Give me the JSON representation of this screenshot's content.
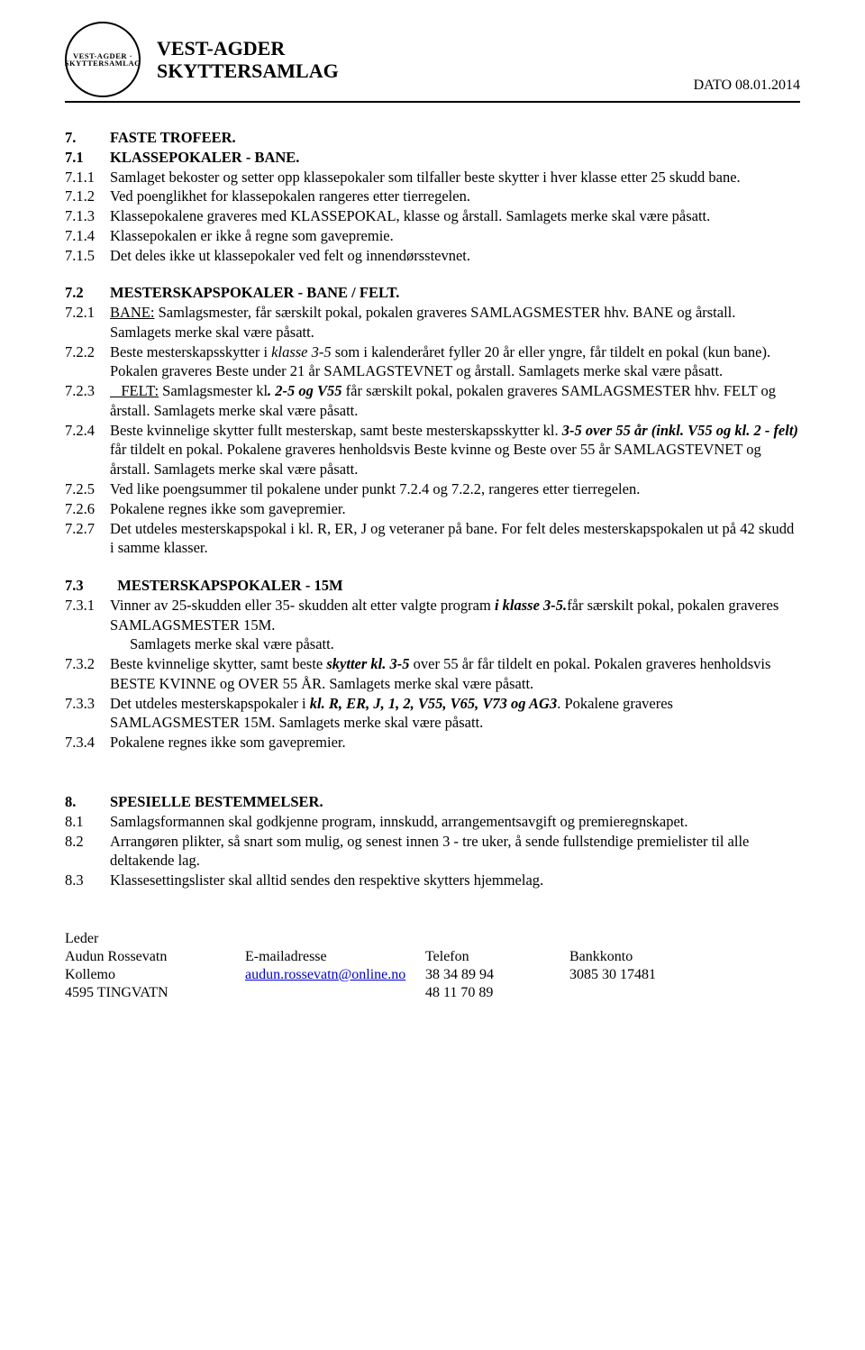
{
  "header": {
    "logo_text": "VEST-AGDER · SKYTTERSAMLAG",
    "org_line1": "VEST-AGDER",
    "org_line2": "SKYTTERSAMLAG",
    "date_label": "DATO 08.01.2014"
  },
  "s7": {
    "num": "7.",
    "title": "FASTE TROFEER."
  },
  "s71": {
    "num": "7.1",
    "title": "KLASSEPOKALER - BANE.",
    "i1_num": "7.1.1",
    "i1_txt": "Samlaget bekoster og setter opp klassepokaler som tilfaller beste skytter i hver klasse etter 25 skudd bane.",
    "i2_num": "7.1.2",
    "i2_txt": "Ved poenglikhet for klassepokalen rangeres etter tierregelen.",
    "i3_num": "7.1.3",
    "i3_txt": "Klassepokalene graveres med KLASSEPOKAL, klasse og årstall. Samlagets merke skal være påsatt.",
    "i4_num": "7.1.4",
    "i4_txt": "Klassepokalen er ikke å regne som gavepremie.",
    "i5_num": "7.1.5",
    "i5_txt": "Det deles ikke ut klassepokaler ved felt og innendørsstevnet."
  },
  "s72": {
    "num": "7.2",
    "title": "MESTERSKAPSPOKALER - BANE / FELT.",
    "i1_num": "7.2.1",
    "i1_a": "BANE:",
    "i1_b": " Samlagsmester, får særskilt pokal, pokalen graveres SAMLAGSMESTER hhv. BANE og årstall.   Samlagets merke skal være påsatt.",
    "i2_num": "7.2.2",
    "i2_a": "Beste mesterskapsskytter i ",
    "i2_b": "klasse 3-5",
    "i2_c": " som i kalenderåret fyller 20 år eller yngre, får tildelt en pokal (kun      bane). Pokalen graveres Beste under 21 år SAMLAGSTEVNET og årstall. Samlagets merke skal være påsatt.",
    "i3_num": "7.2.3",
    "i3_a": "   FELT:",
    "i3_b": " Samlagsmester kl",
    "i3_c": ". 2-5 og V55",
    "i3_d": " får særskilt pokal, pokalen graveres SAMLAGSMESTER hhv. FELT og årstall.  Samlagets merke skal være påsatt.",
    "i4_num": "7.2.4",
    "i4_a": "Beste kvinnelige skytter fullt mesterskap, samt beste mesterskapsskytter kl. ",
    "i4_b": "3-5 over 55 år (inkl. V55 og kl. 2 - felt)",
    "i4_c": " får tildelt en pokal.  Pokalene graveres henholdsvis Beste kvinne og Beste over 55 år SAMLAGSTEVNET og årstall. Samlagets merke skal være påsatt.",
    "i5_num": "7.2.5",
    "i5_txt": "Ved like poengsummer til pokalene under punkt 7.2.4 og 7.2.2, rangeres etter tierregelen.",
    "i6_num": "7.2.6",
    "i6_txt": "Pokalene regnes ikke som gavepremier.",
    "i7_num": "7.2.7",
    "i7_txt": "Det utdeles mesterskapspokal i kl. R, ER, J og veteraner på bane. For felt deles mesterskapspokalen ut på 42 skudd i samme klasser."
  },
  "s73": {
    "num": "7.3",
    "title": "  MESTERSKAPSPOKALER - 15M",
    "i1_num": "7.3.1",
    "i1_a": "Vinner av 25-skudden eller 35- skudden alt etter valgte program  ",
    "i1_b": "i klasse 3-5.",
    "i1_c": "får særskilt pokal, pokalen graveres SAMLAGSMESTER 15M.",
    "i1_d": "Samlagets merke skal være påsatt.",
    "i2_num": "7.3.2",
    "i2_a": "Beste kvinnelige skytter, samt beste ",
    "i2_b": "skytter kl. 3-5",
    "i2_c": " over 55 år får tildelt en pokal. Pokalen graveres              henholdsvis BESTE KVINNE og  OVER 55 ÅR. Samlagets merke skal være påsatt.",
    "i3_num": "7.3.3",
    "i3_a": "Det utdeles mesterskapspokaler  i ",
    "i3_b": "kl. R, ER, J, 1, 2, V55, V65, V73 og AG3",
    "i3_c": ". Pokalene graveres SAMLAGSMESTER 15M. Samlagets merke skal være påsatt.",
    "i4_num": "7.3.4",
    "i4_txt": "Pokalene regnes ikke som gavepremier."
  },
  "s8": {
    "num": "8.",
    "title": "SPESIELLE BESTEMMELSER.",
    "i1_num": "8.1",
    "i1_txt": "Samlagsformannen skal godkjenne program, innskudd, arrangementsavgift og premieregnskapet.",
    "i2_num": "8.2",
    "i2_txt": "Arrangøren plikter, så snart som mulig, og senest innen 3 - tre uker, å sende fullstendige premielister til alle deltakende lag.",
    "i3_num": "8.3",
    "i3_txt": "Klassesettingslister skal alltid sendes den respektive skytters hjemmelag."
  },
  "footer": {
    "leader_label": "Leder",
    "name": "Audun Rossevatn",
    "addr1": "Kollemo",
    "addr2": "4595 TINGVATN",
    "email_label": "E-mailadresse",
    "email": "audun.rossevatn@online.no",
    "phone_label": "Telefon",
    "phone1": "38 34 89 94",
    "phone2": "48 11 70 89",
    "bank_label": "Bankkonto",
    "bank": "3085 30 17481"
  }
}
